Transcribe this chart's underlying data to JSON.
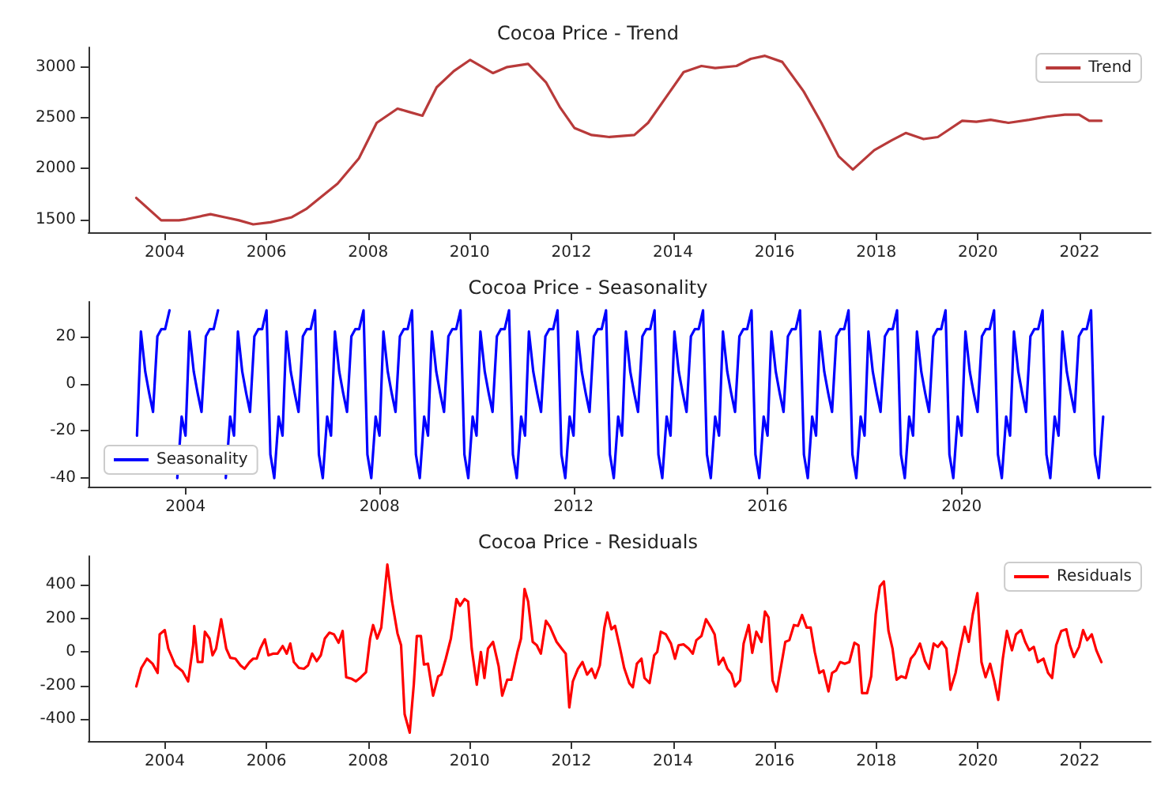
{
  "chart_data": [
    {
      "type": "line",
      "title": "Cocoa Price - Trend",
      "xlim": [
        2002.5,
        2023.4
      ],
      "xticks": [
        2004,
        2006,
        2008,
        2010,
        2012,
        2014,
        2016,
        2018,
        2020,
        2022
      ],
      "ylim": [
        1372,
        3193
      ],
      "yticks": [
        1500,
        2000,
        2500,
        3000
      ],
      "legend": "top right",
      "x": [
        2003.44,
        2003.93,
        2004.28,
        2004.42,
        2004.9,
        2005.18,
        2005.46,
        2005.74,
        2006.08,
        2006.5,
        2006.78,
        2007.4,
        2007.82,
        2008.17,
        2008.58,
        2008.79,
        2009.07,
        2009.35,
        2009.69,
        2010.01,
        2010.46,
        2010.74,
        2011.15,
        2011.5,
        2011.78,
        2012.06,
        2012.4,
        2012.75,
        2013.24,
        2013.51,
        2013.86,
        2014.21,
        2014.56,
        2014.83,
        2015.25,
        2015.53,
        2015.81,
        2016.15,
        2016.57,
        2016.92,
        2017.26,
        2017.54,
        2017.96,
        2018.31,
        2018.58,
        2018.93,
        2019.21,
        2019.42,
        2019.69,
        2019.97,
        2020.25,
        2020.6,
        2021.01,
        2021.36,
        2021.71,
        2021.99,
        2022.19,
        2022.43
      ],
      "series": [
        {
          "name": "Trend",
          "color": "#b83a3a",
          "values": [
            1710,
            1490,
            1490,
            1500,
            1550,
            1520,
            1490,
            1450,
            1470,
            1520,
            1600,
            1850,
            2100,
            2450,
            2590,
            2560,
            2520,
            2800,
            2960,
            3070,
            2940,
            3000,
            3030,
            2850,
            2600,
            2400,
            2330,
            2310,
            2330,
            2450,
            2700,
            2950,
            3010,
            2990,
            3010,
            3080,
            3110,
            3050,
            2760,
            2450,
            2120,
            1990,
            2180,
            2280,
            2350,
            2290,
            2310,
            2380,
            2470,
            2460,
            2480,
            2450,
            2480,
            2510,
            2530,
            2530,
            2470,
            2470
          ]
        }
      ]
    },
    {
      "type": "line",
      "title": "Cocoa Price - Seasonality",
      "xlim": [
        2002.0,
        2023.9
      ],
      "xticks": [
        2004,
        2008,
        2012,
        2016,
        2020
      ],
      "ylim": [
        -43.6,
        34.6
      ],
      "yticks": [
        -40,
        -20,
        0,
        20
      ],
      "legend": "bottom left",
      "x": [
        2003,
        2003.08,
        2003.17,
        2003.25,
        2003.33,
        2003.42,
        2003.5,
        2003.58,
        2003.67,
        2003.75,
        2003.83,
        2003.92,
        2004,
        2004.08,
        2004.17,
        2004.25,
        2004.33,
        2004.42,
        2004.5,
        2004.58,
        2004.67,
        2004.75,
        2004.83,
        2004.92,
        2005,
        2005.08,
        2005.17,
        2005.25,
        2005.33,
        2005.42,
        2005.5,
        2005.58,
        2005.67,
        2005.75,
        2005.83,
        2005.92,
        2006,
        2006.08,
        2006.17,
        2006.25,
        2006.33,
        2006.42,
        2006.5,
        2006.58,
        2006.67,
        2006.75,
        2006.83,
        2006.92,
        2007,
        2007.08,
        2007.17,
        2007.25,
        2007.33,
        2007.42,
        2007.5,
        2007.58,
        2007.67,
        2007.75,
        2007.83,
        2007.92,
        2008,
        2008.08,
        2008.17,
        2008.25,
        2008.33,
        2008.42,
        2008.5,
        2008.58,
        2008.67,
        2008.75,
        2008.83,
        2008.92,
        2009,
        2009.08,
        2009.17,
        2009.25,
        2009.33,
        2009.42,
        2009.5,
        2009.58,
        2009.67,
        2009.75,
        2009.83,
        2009.92,
        2010,
        2010.08,
        2010.17,
        2010.25,
        2010.33,
        2010.42,
        2010.5,
        2010.58,
        2010.67,
        2010.75,
        2010.83,
        2010.92,
        2011,
        2011.08,
        2011.17,
        2011.25,
        2011.33,
        2011.42,
        2011.5,
        2011.58,
        2011.67,
        2011.75,
        2011.83,
        2011.92,
        2012,
        2012.08,
        2012.17,
        2012.25,
        2012.33,
        2012.42,
        2012.5,
        2012.58,
        2012.67,
        2012.75,
        2012.83,
        2012.92,
        2013,
        2013.08,
        2013.17,
        2013.25,
        2013.33,
        2013.42,
        2013.5,
        2013.58,
        2013.67,
        2013.75,
        2013.83,
        2013.92,
        2014,
        2014.08,
        2014.17,
        2014.25,
        2014.33,
        2014.42,
        2014.5,
        2014.58,
        2014.67,
        2014.75,
        2014.83,
        2014.92,
        2015,
        2015.08,
        2015.17,
        2015.25,
        2015.33,
        2015.42,
        2015.5,
        2015.58,
        2015.67,
        2015.75,
        2015.83,
        2015.92,
        2016,
        2016.08,
        2016.17,
        2016.25,
        2016.33,
        2016.42,
        2016.5,
        2016.58,
        2016.67,
        2016.75,
        2016.83,
        2016.92,
        2017,
        2017.08,
        2017.17,
        2017.25,
        2017.33,
        2017.42,
        2017.5,
        2017.58,
        2017.67,
        2017.75,
        2017.83,
        2017.92,
        2018,
        2018.08,
        2018.17,
        2018.25,
        2018.33,
        2018.42,
        2018.5,
        2018.58,
        2018.67,
        2018.75,
        2018.83,
        2018.92,
        2019,
        2019.08,
        2019.17,
        2019.25,
        2019.33,
        2019.42,
        2019.5,
        2019.58,
        2019.67,
        2019.75,
        2019.83,
        2019.92,
        2020,
        2020.08,
        2020.17,
        2020.25,
        2020.33,
        2020.42,
        2020.5,
        2020.58,
        2020.67,
        2020.75,
        2020.83,
        2020.92,
        2021,
        2021.08,
        2021.17,
        2021.25,
        2021.33,
        2021.42,
        2021.5,
        2021.58,
        2021.67,
        2021.75,
        2021.83,
        2021.92,
        2022,
        2022.08,
        2022.17,
        2022.25,
        2022.33,
        2022.42,
        2022.5,
        2022.58,
        2022.67,
        2022.75,
        2022.83,
        2022.92
      ],
      "series": [
        {
          "name": "Seasonality",
          "color": "#0000ff",
          "values": [
            -22,
            22,
            5,
            -4,
            -12,
            20,
            23,
            23,
            31,
            null,
            -40,
            -14,
            -22,
            22,
            5,
            -4,
            -12,
            20,
            23,
            23,
            31,
            null,
            -40,
            -14,
            -22,
            22,
            5,
            -4,
            -12,
            20,
            23,
            23,
            31,
            -30,
            -40,
            -14,
            -22,
            22,
            5,
            -4,
            -12,
            20,
            23,
            23,
            31,
            -30,
            -40,
            -14,
            -22,
            22,
            5,
            -4,
            -12,
            20,
            23,
            23,
            31,
            -30,
            -40,
            -14,
            -22,
            22,
            5,
            -4,
            -12,
            20,
            23,
            23,
            31,
            -30,
            -40,
            -14,
            -22,
            22,
            5,
            -4,
            -12,
            20,
            23,
            23,
            31,
            -30,
            -40,
            -14,
            -22,
            22,
            5,
            -4,
            -12,
            20,
            23,
            23,
            31,
            -30,
            -40,
            -14,
            -22,
            22,
            5,
            -4,
            -12,
            20,
            23,
            23,
            31,
            -30,
            -40,
            -14,
            -22,
            22,
            5,
            -4,
            -12,
            20,
            23,
            23,
            31,
            -30,
            -40,
            -14,
            -22,
            22,
            5,
            -4,
            -12,
            20,
            23,
            23,
            31,
            -30,
            -40,
            -14,
            -22,
            22,
            5,
            -4,
            -12,
            20,
            23,
            23,
            31,
            -30,
            -40,
            -14,
            -22,
            22,
            5,
            -4,
            -12,
            20,
            23,
            23,
            31,
            -30,
            -40,
            -14,
            -22,
            22,
            5,
            -4,
            -12,
            20,
            23,
            23,
            31,
            -30,
            -40,
            -14,
            -22,
            22,
            5,
            -4,
            -12,
            20,
            23,
            23,
            31,
            -30,
            -40,
            -14,
            -22,
            22,
            5,
            -4,
            -12,
            20,
            23,
            23,
            31,
            -30,
            -40,
            -14,
            -22,
            22,
            5,
            -4,
            -12,
            20,
            23,
            23,
            31,
            -30,
            -40,
            -14,
            -22,
            22,
            5,
            -4,
            -12,
            20,
            23,
            23,
            31,
            -30,
            -40,
            -14,
            -22,
            22,
            5,
            -4,
            -12,
            20,
            23,
            23,
            31,
            -30,
            -40,
            -14,
            -22,
            22,
            5,
            -4,
            -12,
            20,
            23,
            23,
            31,
            -30,
            -40,
            -14
          ]
        }
      ]
    },
    {
      "type": "line",
      "title": "Cocoa Price - Residuals",
      "xlim": [
        2002.5,
        2023.4
      ],
      "xticks": [
        2004,
        2006,
        2008,
        2010,
        2012,
        2014,
        2016,
        2018,
        2020,
        2022
      ],
      "ylim": [
        -530,
        570
      ],
      "yticks": [
        -400,
        -200,
        0,
        200,
        400
      ],
      "legend": "top right",
      "x": [
        2003.44,
        2003.54,
        2003.65,
        2003.76,
        2003.86,
        2003.9,
        2004,
        2004.07,
        2004.21,
        2004.35,
        2004.46,
        2004.56,
        2004.58,
        2004.65,
        2004.74,
        2004.79,
        2004.88,
        2004.94,
        2005.01,
        2005.11,
        2005.21,
        2005.29,
        2005.39,
        2005.49,
        2005.57,
        2005.67,
        2005.74,
        2005.81,
        2005.88,
        2005.97,
        2006.04,
        2006.13,
        2006.22,
        2006.32,
        2006.4,
        2006.47,
        2006.54,
        2006.64,
        2006.74,
        2006.82,
        2006.9,
        2006.99,
        2007.07,
        2007.15,
        2007.24,
        2007.33,
        2007.42,
        2007.5,
        2007.57,
        2007.68,
        2007.76,
        2007.86,
        2007.96,
        2008.04,
        2008.1,
        2008.18,
        2008.26,
        2008.38,
        2008.47,
        2008.58,
        2008.65,
        2008.72,
        2008.82,
        2008.9,
        2008.96,
        2009.04,
        2009.1,
        2009.18,
        2009.28,
        2009.38,
        2009.44,
        2009.53,
        2009.63,
        2009.74,
        2009.81,
        2009.9,
        2009.97,
        2010.04,
        2010.14,
        2010.22,
        2010.29,
        2010.36,
        2010.46,
        2010.57,
        2010.64,
        2010.74,
        2010.82,
        2010.94,
        2011.01,
        2011.08,
        2011.15,
        2011.24,
        2011.32,
        2011.4,
        2011.5,
        2011.58,
        2011.71,
        2011.81,
        2011.89,
        2011.96,
        2012.03,
        2012.13,
        2012.22,
        2012.31,
        2012.4,
        2012.47,
        2012.56,
        2012.65,
        2012.71,
        2012.79,
        2012.86,
        2012.96,
        2013.04,
        2013.14,
        2013.21,
        2013.29,
        2013.38,
        2013.44,
        2013.54,
        2013.63,
        2013.69,
        2013.76,
        2013.86,
        2013.96,
        2014.04,
        2014.11,
        2014.21,
        2014.31,
        2014.39,
        2014.46,
        2014.56,
        2014.65,
        2014.74,
        2014.82,
        2014.9,
        2014.99,
        2015.07,
        2015.15,
        2015.22,
        2015.32,
        2015.39,
        2015.49,
        2015.56,
        2015.64,
        2015.74,
        2015.81,
        2015.88,
        2015.96,
        2016.04,
        2016.13,
        2016.21,
        2016.29,
        2016.38,
        2016.46,
        2016.54,
        2016.63,
        2016.71,
        2016.79,
        2016.88,
        2016.96,
        2017.06,
        2017.13,
        2017.21,
        2017.29,
        2017.38,
        2017.47,
        2017.57,
        2017.65,
        2017.72,
        2017.82,
        2017.9,
        2017.99,
        2018.07,
        2018.15,
        2018.24,
        2018.32,
        2018.4,
        2018.49,
        2018.58,
        2018.68,
        2018.76,
        2018.86,
        2018.96,
        2019.04,
        2019.13,
        2019.21,
        2019.29,
        2019.38,
        2019.46,
        2019.56,
        2019.65,
        2019.74,
        2019.82,
        2019.9,
        2019.99,
        2020.07,
        2020.15,
        2020.24,
        2020.32,
        2020.4,
        2020.49,
        2020.57,
        2020.67,
        2020.75,
        2020.85,
        2020.93,
        2021.01,
        2021.1,
        2021.18,
        2021.29,
        2021.38,
        2021.46,
        2021.54,
        2021.64,
        2021.74,
        2021.81,
        2021.89,
        2021.99,
        2022.07,
        2022.15,
        2022.24,
        2022.33,
        2022.43
      ],
      "series": [
        {
          "name": "Residuals",
          "color": "#ff0000",
          "values": [
            -205,
            -95,
            -40,
            -70,
            -125,
            105,
            130,
            20,
            -80,
            -115,
            -175,
            40,
            155,
            -60,
            -60,
            120,
            80,
            -20,
            20,
            195,
            20,
            -35,
            -40,
            -80,
            -100,
            -60,
            -40,
            -40,
            20,
            75,
            -20,
            -10,
            -10,
            35,
            -10,
            50,
            -60,
            -95,
            -100,
            -80,
            -10,
            -55,
            -20,
            80,
            115,
            105,
            55,
            125,
            -150,
            -160,
            -175,
            -150,
            -120,
            80,
            160,
            80,
            145,
            520,
            305,
            110,
            40,
            -370,
            -480,
            -195,
            95,
            95,
            -75,
            -70,
            -260,
            -145,
            -135,
            -40,
            80,
            315,
            275,
            315,
            300,
            20,
            -195,
            0,
            -155,
            20,
            60,
            -85,
            -260,
            -165,
            -165,
            0,
            80,
            375,
            300,
            60,
            40,
            -10,
            185,
            150,
            60,
            20,
            -10,
            -330,
            -175,
            -100,
            -60,
            -135,
            -100,
            -155,
            -80,
            145,
            235,
            135,
            155,
            20,
            -95,
            -185,
            -210,
            -70,
            -40,
            -155,
            -185,
            -20,
            0,
            120,
            105,
            50,
            -40,
            40,
            45,
            20,
            -10,
            70,
            95,
            195,
            150,
            105,
            -75,
            -35,
            -100,
            -130,
            -205,
            -170,
            50,
            160,
            -5,
            120,
            60,
            240,
            205,
            -170,
            -235,
            -80,
            60,
            70,
            160,
            155,
            220,
            145,
            145,
            0,
            -125,
            -110,
            -235,
            -125,
            -110,
            -60,
            -70,
            -60,
            55,
            40,
            -245,
            -245,
            -145,
            225,
            390,
            420,
            125,
            20,
            -165,
            -145,
            -155,
            -40,
            -10,
            50,
            -55,
            -100,
            50,
            30,
            60,
            20,
            -225,
            -125,
            20,
            150,
            60,
            225,
            350,
            -60,
            -150,
            -70,
            -170,
            -285,
            -40,
            125,
            10,
            105,
            130,
            60,
            10,
            30,
            -60,
            -40,
            -125,
            -155,
            40,
            125,
            135,
            40,
            -30,
            30,
            130,
            70,
            105,
            10,
            -60
          ]
        }
      ]
    }
  ]
}
